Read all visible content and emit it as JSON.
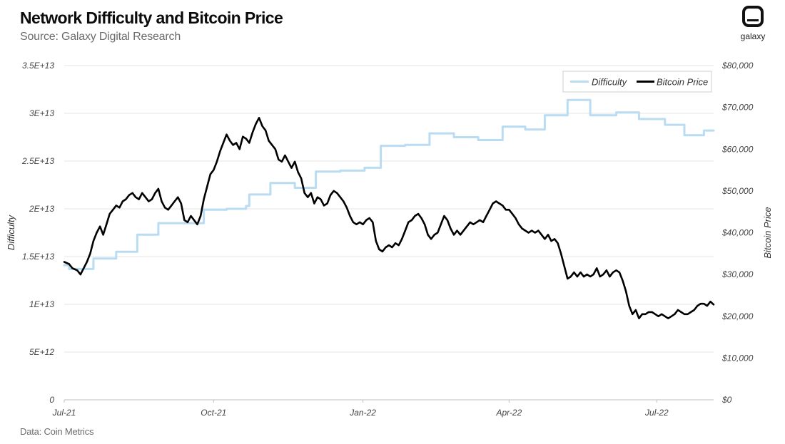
{
  "header": {
    "title": "Network Difficulty and Bitcoin Price",
    "subtitle": "Source: Galaxy Digital Research"
  },
  "footer": {
    "data_source": "Data: Coin Metrics"
  },
  "logo": {
    "text": "galaxy"
  },
  "colors": {
    "difficulty": "#b9dcf2",
    "price": "#000000",
    "grid": "#e6e6e6",
    "axis": "#bfbfbf"
  },
  "chart_data": {
    "type": "line",
    "title": "Network Difficulty and Bitcoin Price",
    "subtitle": "Source: Galaxy Digital Research",
    "y_left": {
      "label": "Difficulty",
      "range": [
        0,
        35000000000000.0
      ],
      "ticks": [
        0,
        5000000000000.0,
        10000000000000.0,
        15000000000000.0,
        20000000000000.0,
        25000000000000.0,
        30000000000000.0,
        35000000000000.0
      ],
      "tick_labels": [
        "0",
        "5E+12",
        "1E+13",
        "1.5E+13",
        "2E+13",
        "2.5E+13",
        "3E+13",
        "3.5E+13"
      ]
    },
    "y_right": {
      "label": "Bitcoin Price",
      "range": [
        0,
        80000
      ],
      "ticks": [
        0,
        10000,
        20000,
        30000,
        40000,
        50000,
        60000,
        70000,
        80000
      ],
      "tick_labels": [
        "$0",
        "$10,000",
        "$20,000",
        "$30,000",
        "$40,000",
        "$50,000",
        "$60,000",
        "$70,000",
        "$80,000"
      ]
    },
    "x_axis": {
      "range_days": [
        0,
        400
      ],
      "ticks": [
        {
          "label": "Jul-21",
          "day": 0
        },
        {
          "label": "Oct-21",
          "day": 92
        },
        {
          "label": "Jan-22",
          "day": 184
        },
        {
          "label": "Apr-22",
          "day": 274
        },
        {
          "label": "Jul-22",
          "day": 365
        }
      ]
    },
    "legend": {
      "position": "top-right",
      "entries": [
        "Difficulty",
        "Bitcoin Price"
      ]
    },
    "series": [
      {
        "name": "Difficulty",
        "axis": "left",
        "step": true,
        "points": [
          [
            0,
            14100000000000.0
          ],
          [
            3,
            13700000000000.0
          ],
          [
            18,
            14800000000000.0
          ],
          [
            32,
            15500000000000.0
          ],
          [
            45,
            17300000000000.0
          ],
          [
            58,
            18500000000000.0
          ],
          [
            72,
            18500000000000.0
          ],
          [
            86,
            19900000000000.0
          ],
          [
            100,
            20000000000000.0
          ],
          [
            112,
            20300000000000.0
          ],
          [
            114,
            21500000000000.0
          ],
          [
            127,
            22700000000000.0
          ],
          [
            140,
            22700000000000.0
          ],
          [
            142,
            22200000000000.0
          ],
          [
            153,
            22200000000000.0
          ],
          [
            155,
            23900000000000.0
          ],
          [
            170,
            24000000000000.0
          ],
          [
            185,
            24300000000000.0
          ],
          [
            195,
            26600000000000.0
          ],
          [
            210,
            26700000000000.0
          ],
          [
            225,
            27900000000000.0
          ],
          [
            240,
            27500000000000.0
          ],
          [
            255,
            27200000000000.0
          ],
          [
            270,
            28600000000000.0
          ],
          [
            284,
            28300000000000.0
          ],
          [
            296,
            29800000000000.0
          ],
          [
            310,
            31400000000000.0
          ],
          [
            324,
            29800000000000.0
          ],
          [
            340,
            30100000000000.0
          ],
          [
            354,
            29400000000000.0
          ],
          [
            370,
            28800000000000.0
          ],
          [
            382,
            27700000000000.0
          ],
          [
            394,
            28200000000000.0
          ],
          [
            400,
            28200000000000.0
          ]
        ]
      },
      {
        "name": "Bitcoin Price",
        "axis": "right",
        "step": false,
        "points": [
          [
            0,
            33000
          ],
          [
            3,
            32500
          ],
          [
            5,
            31500
          ],
          [
            8,
            31000
          ],
          [
            10,
            30000
          ],
          [
            12,
            31500
          ],
          [
            14,
            33000
          ],
          [
            16,
            35000
          ],
          [
            18,
            38000
          ],
          [
            20,
            40000
          ],
          [
            22,
            41500
          ],
          [
            24,
            39500
          ],
          [
            26,
            42000
          ],
          [
            28,
            44500
          ],
          [
            30,
            45500
          ],
          [
            32,
            46500
          ],
          [
            34,
            46000
          ],
          [
            36,
            47500
          ],
          [
            38,
            48000
          ],
          [
            40,
            49000
          ],
          [
            42,
            49500
          ],
          [
            44,
            48500
          ],
          [
            46,
            48000
          ],
          [
            48,
            49500
          ],
          [
            50,
            48500
          ],
          [
            52,
            47500
          ],
          [
            54,
            48000
          ],
          [
            56,
            49500
          ],
          [
            58,
            50500
          ],
          [
            60,
            47500
          ],
          [
            62,
            46000
          ],
          [
            64,
            45500
          ],
          [
            66,
            46500
          ],
          [
            68,
            47500
          ],
          [
            70,
            48500
          ],
          [
            72,
            47000
          ],
          [
            74,
            43000
          ],
          [
            76,
            42500
          ],
          [
            78,
            44000
          ],
          [
            80,
            43000
          ],
          [
            82,
            42000
          ],
          [
            84,
            44000
          ],
          [
            86,
            48000
          ],
          [
            88,
            51000
          ],
          [
            90,
            54000
          ],
          [
            92,
            55000
          ],
          [
            94,
            57000
          ],
          [
            96,
            59500
          ],
          [
            98,
            61500
          ],
          [
            100,
            63500
          ],
          [
            102,
            62000
          ],
          [
            104,
            61000
          ],
          [
            106,
            61500
          ],
          [
            108,
            60000
          ],
          [
            110,
            63000
          ],
          [
            112,
            62500
          ],
          [
            114,
            61500
          ],
          [
            116,
            64000
          ],
          [
            118,
            66000
          ],
          [
            120,
            67500
          ],
          [
            122,
            65500
          ],
          [
            124,
            64500
          ],
          [
            126,
            62000
          ],
          [
            128,
            61000
          ],
          [
            130,
            60000
          ],
          [
            132,
            57500
          ],
          [
            134,
            57000
          ],
          [
            136,
            58500
          ],
          [
            138,
            57000
          ],
          [
            140,
            55500
          ],
          [
            142,
            57000
          ],
          [
            144,
            54500
          ],
          [
            146,
            53000
          ],
          [
            148,
            49500
          ],
          [
            150,
            48500
          ],
          [
            152,
            49500
          ],
          [
            154,
            47000
          ],
          [
            156,
            48500
          ],
          [
            158,
            48000
          ],
          [
            160,
            46500
          ],
          [
            162,
            47000
          ],
          [
            164,
            49000
          ],
          [
            166,
            50000
          ],
          [
            168,
            49500
          ],
          [
            170,
            48500
          ],
          [
            172,
            47500
          ],
          [
            174,
            46000
          ],
          [
            176,
            44000
          ],
          [
            178,
            42500
          ],
          [
            180,
            42000
          ],
          [
            182,
            42500
          ],
          [
            184,
            42000
          ],
          [
            186,
            43000
          ],
          [
            188,
            43500
          ],
          [
            190,
            42500
          ],
          [
            192,
            38000
          ],
          [
            194,
            36000
          ],
          [
            196,
            35500
          ],
          [
            198,
            36500
          ],
          [
            200,
            37000
          ],
          [
            202,
            36500
          ],
          [
            204,
            37500
          ],
          [
            206,
            37000
          ],
          [
            208,
            38500
          ],
          [
            210,
            40500
          ],
          [
            212,
            42500
          ],
          [
            214,
            43000
          ],
          [
            216,
            44000
          ],
          [
            218,
            44500
          ],
          [
            220,
            43500
          ],
          [
            222,
            42000
          ],
          [
            224,
            39500
          ],
          [
            226,
            38500
          ],
          [
            228,
            39500
          ],
          [
            230,
            40000
          ],
          [
            232,
            42000
          ],
          [
            234,
            44000
          ],
          [
            236,
            43000
          ],
          [
            238,
            41000
          ],
          [
            240,
            39500
          ],
          [
            242,
            40500
          ],
          [
            244,
            39500
          ],
          [
            246,
            40500
          ],
          [
            248,
            41500
          ],
          [
            250,
            42500
          ],
          [
            252,
            42000
          ],
          [
            254,
            42500
          ],
          [
            256,
            43000
          ],
          [
            258,
            42500
          ],
          [
            260,
            44000
          ],
          [
            262,
            45500
          ],
          [
            264,
            47000
          ],
          [
            266,
            47500
          ],
          [
            268,
            47000
          ],
          [
            270,
            46500
          ],
          [
            272,
            45500
          ],
          [
            274,
            45500
          ],
          [
            276,
            44500
          ],
          [
            278,
            43500
          ],
          [
            280,
            42000
          ],
          [
            282,
            41000
          ],
          [
            284,
            40500
          ],
          [
            286,
            40000
          ],
          [
            288,
            40500
          ],
          [
            290,
            40000
          ],
          [
            292,
            40500
          ],
          [
            294,
            39500
          ],
          [
            296,
            38500
          ],
          [
            298,
            39500
          ],
          [
            300,
            38000
          ],
          [
            302,
            38500
          ],
          [
            304,
            37500
          ],
          [
            306,
            35000
          ],
          [
            308,
            32000
          ],
          [
            310,
            29000
          ],
          [
            312,
            29500
          ],
          [
            314,
            30500
          ],
          [
            316,
            29500
          ],
          [
            318,
            30500
          ],
          [
            320,
            29500
          ],
          [
            322,
            30000
          ],
          [
            324,
            29500
          ],
          [
            326,
            30000
          ],
          [
            328,
            31500
          ],
          [
            330,
            29500
          ],
          [
            332,
            30000
          ],
          [
            334,
            31000
          ],
          [
            336,
            29500
          ],
          [
            338,
            30500
          ],
          [
            340,
            31000
          ],
          [
            342,
            30500
          ],
          [
            344,
            28500
          ],
          [
            346,
            26000
          ],
          [
            348,
            22500
          ],
          [
            350,
            20500
          ],
          [
            352,
            21500
          ],
          [
            354,
            19500
          ],
          [
            356,
            20500
          ],
          [
            358,
            20500
          ],
          [
            360,
            21000
          ],
          [
            362,
            21000
          ],
          [
            364,
            20500
          ],
          [
            366,
            20000
          ],
          [
            368,
            20500
          ],
          [
            370,
            20000
          ],
          [
            372,
            19500
          ],
          [
            374,
            20000
          ],
          [
            376,
            20500
          ],
          [
            378,
            21500
          ],
          [
            380,
            21000
          ],
          [
            382,
            20500
          ],
          [
            384,
            20500
          ],
          [
            386,
            21000
          ],
          [
            388,
            21500
          ],
          [
            390,
            22500
          ],
          [
            392,
            23000
          ],
          [
            394,
            23000
          ],
          [
            396,
            22500
          ],
          [
            398,
            23500
          ],
          [
            400,
            22800
          ]
        ]
      }
    ]
  }
}
